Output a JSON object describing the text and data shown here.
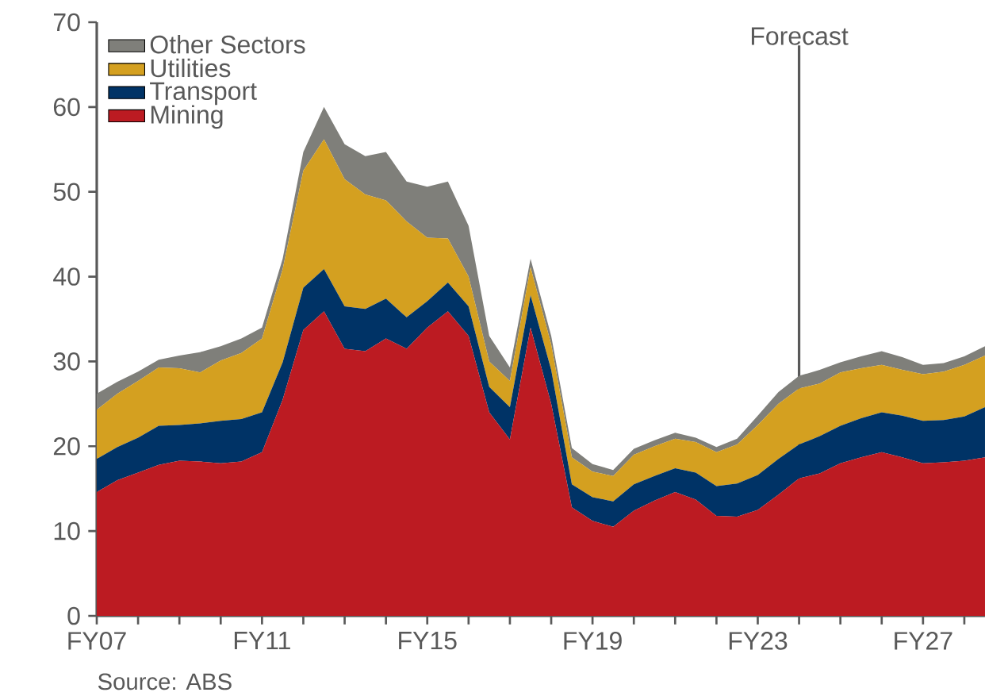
{
  "chart_data": {
    "type": "area",
    "stacked": true,
    "legend": "top left",
    "categories": [
      "FY07",
      null,
      null,
      null,
      null,
      null,
      null,
      null,
      "FY11",
      null,
      null,
      null,
      null,
      null,
      null,
      null,
      "FY15",
      null,
      null,
      null,
      null,
      null,
      null,
      null,
      "FY19",
      null,
      null,
      null,
      null,
      null,
      null,
      null,
      "FY23",
      null,
      null,
      null,
      null,
      null,
      null,
      null,
      "FY27",
      null,
      null,
      null
    ],
    "series": [
      {
        "name": "Mining",
        "color": "#bc1b22",
        "values": [
          14.6,
          16.0,
          16.9,
          17.8,
          18.3,
          18.2,
          18.0,
          18.2,
          19.3,
          25.5,
          33.7,
          35.9,
          31.5,
          31.2,
          32.7,
          31.5,
          34.0,
          35.9,
          33.0,
          24.0,
          20.8,
          34.0,
          25.0,
          12.8,
          11.2,
          10.5,
          12.4,
          13.6,
          14.6,
          13.7,
          11.8,
          11.7,
          12.5,
          14.3,
          16.2,
          16.8,
          18.0,
          18.7,
          19.3,
          18.7,
          18.0,
          18.1,
          18.3,
          18.7
        ]
      },
      {
        "name": "Transport",
        "color": "#003366",
        "values": [
          3.9,
          3.9,
          4.1,
          4.6,
          4.2,
          4.5,
          5.0,
          5.0,
          4.7,
          4.4,
          5.0,
          5.0,
          5.0,
          5.0,
          4.7,
          3.7,
          3.1,
          3.4,
          3.5,
          3.0,
          3.8,
          3.8,
          4.0,
          2.7,
          2.8,
          3.0,
          3.1,
          2.9,
          2.8,
          3.2,
          3.5,
          3.9,
          4.1,
          4.2,
          4.0,
          4.4,
          4.4,
          4.6,
          4.7,
          4.9,
          5.0,
          5.0,
          5.2,
          5.9
        ]
      },
      {
        "name": "Utilities",
        "color": "#d4a020",
        "values": [
          5.8,
          6.3,
          6.7,
          6.9,
          6.7,
          6.0,
          7.1,
          7.8,
          8.7,
          11.0,
          13.8,
          15.3,
          15.0,
          13.5,
          11.6,
          11.3,
          7.5,
          5.2,
          3.5,
          3.0,
          3.1,
          3.3,
          3.0,
          3.2,
          3.0,
          3.0,
          3.5,
          3.5,
          3.5,
          3.6,
          4.0,
          4.6,
          5.9,
          6.5,
          6.6,
          6.2,
          6.3,
          5.9,
          5.6,
          5.4,
          5.5,
          5.7,
          6.1,
          6.1
        ]
      },
      {
        "name": "Other Sectors",
        "color": "#7f7f7a",
        "values": [
          1.9,
          1.4,
          1.1,
          0.9,
          1.5,
          2.4,
          1.7,
          1.7,
          1.3,
          1.2,
          2.2,
          3.8,
          4.1,
          4.5,
          5.7,
          4.7,
          6.0,
          6.7,
          6.0,
          3.0,
          1.6,
          1.0,
          1.0,
          1.1,
          0.9,
          0.7,
          0.7,
          0.7,
          0.7,
          0.5,
          0.6,
          0.7,
          1.1,
          1.4,
          1.5,
          1.6,
          1.2,
          1.4,
          1.6,
          1.5,
          1.1,
          1.0,
          1.0,
          1.1
        ]
      }
    ],
    "ylim": [
      0,
      70
    ],
    "yticks": [
      0,
      10,
      20,
      30,
      40,
      50,
      60,
      70
    ],
    "annotations": [
      "Forecast",
      "Source: ABS"
    ]
  }
}
